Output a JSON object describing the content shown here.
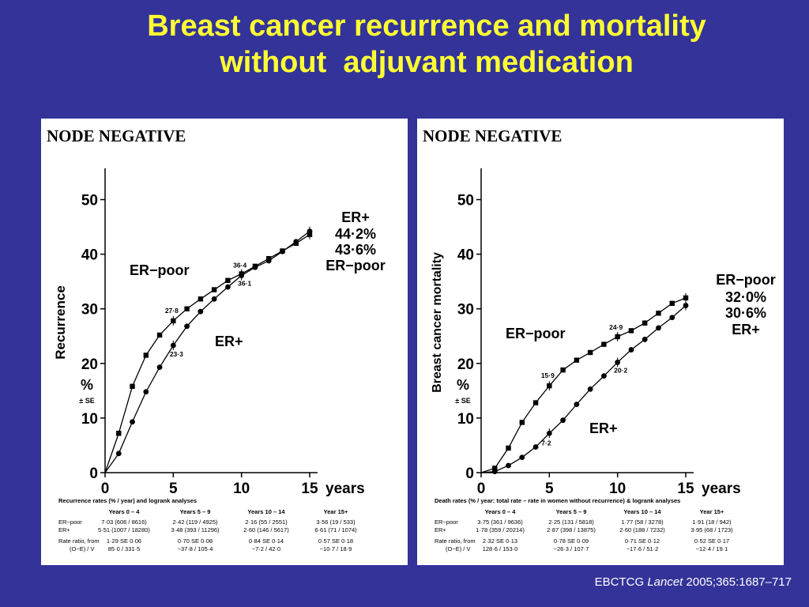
{
  "slide": {
    "title_lines": [
      "Breast cancer recurrence and mortality",
      "without  adjuvant medication"
    ],
    "citation": {
      "prefix": "EBCTCG ",
      "journal": "Lancet",
      "suffix": " 2005;365:1687–717"
    }
  },
  "chart_data": [
    {
      "type": "line",
      "panel_title": "NODE NEGATIVE",
      "ylabel": "Recurrence",
      "yunit": "%",
      "yunit_note": "± SE",
      "xunit": "years",
      "xlim": [
        0,
        15
      ],
      "ylim": [
        0,
        55
      ],
      "yticks": [
        0,
        10,
        20,
        30,
        40,
        50
      ],
      "xticks": [
        0,
        5,
        10,
        15
      ],
      "series": [
        {
          "name": "ER−poor",
          "marker": "square",
          "x": [
            1,
            2,
            3,
            4,
            5,
            6,
            7,
            8,
            9,
            10,
            11,
            12,
            13,
            14,
            15
          ],
          "y": [
            7.2,
            15.8,
            21.5,
            25.2,
            27.8,
            30.0,
            31.8,
            33.5,
            35.2,
            36.4,
            37.8,
            39.2,
            40.6,
            42.0,
            43.6
          ]
        },
        {
          "name": "ER+",
          "marker": "circle",
          "x": [
            1,
            2,
            3,
            4,
            5,
            6,
            7,
            8,
            9,
            10,
            11,
            12,
            13,
            14,
            15
          ],
          "y": [
            3.5,
            9.3,
            14.8,
            19.3,
            23.3,
            26.8,
            29.5,
            31.8,
            34.0,
            36.1,
            37.6,
            38.8,
            40.5,
            42.3,
            44.2
          ]
        }
      ],
      "point_labels": [
        {
          "text": "27·8",
          "x": 5,
          "y": 27.8
        },
        {
          "text": "36·4",
          "x": 10,
          "y": 36.4
        },
        {
          "text": "23·3",
          "x": 5,
          "y": 23.3
        },
        {
          "text": "36·1",
          "x": 10,
          "y": 36.1
        }
      ],
      "annotations": {
        "in_plot": [
          {
            "text": "ER−poor",
            "at": "left"
          },
          {
            "text": "ER+",
            "at": "middle"
          }
        ],
        "end_labels": [
          "ER+",
          "44·2%",
          "43·6%",
          "ER−poor"
        ]
      },
      "table": {
        "title": "Recurrence rates (% / year) and logrank analyses",
        "columns": [
          "Years 0 – 4",
          "Years 5 – 9",
          "Years 10 – 14",
          "Year 15+"
        ],
        "rows": [
          {
            "label": "ER−poor",
            "cells": [
              "7·03 (606 / 8616)",
              "2·42 (119 / 4925)",
              "2·16 (55 / 2551)",
              "3·56 (19 / 533)"
            ]
          },
          {
            "label": "ER+",
            "cells": [
              "5·51 (1007 / 18280)",
              "3·48 (393 / 11296)",
              "2·60 (146 / 5617)",
              "6·61 (71 / 1074)"
            ]
          },
          {
            "label": "Rate ratio, from",
            "cells": [
              "1·29 SE 0·06",
              "0·70 SE 0·08",
              "0·84 SE 0·14",
              "0·57 SE 0·18"
            ]
          },
          {
            "label": "(O−E) / V",
            "cells": [
              "85·0 / 331·5",
              "−37·8 / 105·4",
              "−7·2 / 42·0",
              "−10·7 / 18·9"
            ]
          }
        ]
      }
    },
    {
      "type": "line",
      "panel_title": "NODE NEGATIVE",
      "ylabel": "Breast cancer mortality",
      "yunit": "%",
      "yunit_note": "± SE",
      "xunit": "years",
      "xlim": [
        0,
        15
      ],
      "ylim": [
        0,
        55
      ],
      "yticks": [
        0,
        10,
        20,
        30,
        40,
        50
      ],
      "xticks": [
        0,
        5,
        10,
        15
      ],
      "series": [
        {
          "name": "ER−poor",
          "marker": "square",
          "x": [
            1,
            2,
            3,
            4,
            5,
            6,
            7,
            8,
            9,
            10,
            11,
            12,
            13,
            14,
            15
          ],
          "y": [
            0.8,
            4.5,
            9.2,
            12.8,
            15.9,
            18.8,
            20.6,
            22.0,
            23.5,
            24.9,
            26.0,
            27.4,
            29.2,
            31.0,
            32.0
          ]
        },
        {
          "name": "ER+",
          "marker": "circle",
          "x": [
            1,
            2,
            3,
            4,
            5,
            6,
            7,
            8,
            9,
            10,
            11,
            12,
            13,
            14,
            15
          ],
          "y": [
            0.2,
            1.3,
            2.8,
            4.7,
            7.2,
            9.6,
            12.5,
            15.3,
            17.7,
            20.2,
            22.5,
            24.4,
            26.5,
            28.4,
            30.6
          ]
        }
      ],
      "point_labels": [
        {
          "text": "15·9",
          "x": 5,
          "y": 15.9
        },
        {
          "text": "24·9",
          "x": 10,
          "y": 24.9
        },
        {
          "text": "7·2",
          "x": 5,
          "y": 7.2
        },
        {
          "text": "20·2",
          "x": 10,
          "y": 20.2
        }
      ],
      "annotations": {
        "in_plot": [
          {
            "text": "ER−poor",
            "at": "left"
          },
          {
            "text": "ER+",
            "at": "lower-middle"
          }
        ],
        "end_labels": [
          "ER−poor",
          "32·0%",
          "30·6%",
          "ER+"
        ]
      },
      "table": {
        "title": "Death rates (% / year: total rate – rate in women without recurrence) & logrank analyses",
        "columns": [
          "Years 0 – 4",
          "Years 5 – 9",
          "Years 10 – 14",
          "Year 15+"
        ],
        "rows": [
          {
            "label": "ER−poor",
            "cells": [
              "3·75 (361 / 9636)",
              "2·25 (131 / 5818)",
              "1·77 (58 / 3278)",
              "1·91 (18 / 942)"
            ]
          },
          {
            "label": "ER+",
            "cells": [
              "1·78 (359 / 20214)",
              "2·87 (398 / 13875)",
              "2·60 (188 / 7232)",
              "3·95 (68 / 1723)"
            ]
          },
          {
            "label": "Rate ratio, from",
            "cells": [
              "2·32 SE 0·13",
              "0·78 SE 0·09",
              "0·71 SE 0·12",
              "0·52 SE 0·17"
            ]
          },
          {
            "label": "(O−E) / V",
            "cells": [
              "128·6 / 153·0",
              "−26·3 / 107·7",
              "−17·6 / 51·2",
              "−12·4 / 19·1"
            ]
          }
        ]
      }
    }
  ]
}
